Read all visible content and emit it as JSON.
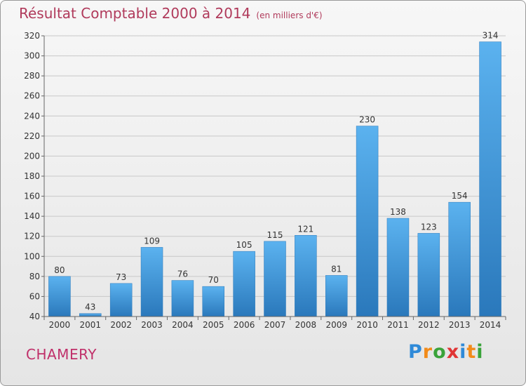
{
  "title": "Résultat Comptable 2000 à 2014",
  "subtitle": "(en milliers d'€)",
  "city": "CHAMERY",
  "logo": {
    "text": "Proxiti",
    "letters": [
      "P",
      "r",
      "o",
      "x",
      "i",
      "t",
      "i"
    ],
    "colors": [
      "#2f8ad8",
      "#f28b1a",
      "#3aa33a",
      "#e03535",
      "#2f8ad8",
      "#f28b1a",
      "#3aa33a"
    ]
  },
  "chart_data": {
    "type": "bar",
    "categories": [
      "2000",
      "2001",
      "2002",
      "2003",
      "2004",
      "2005",
      "2006",
      "2007",
      "2008",
      "2009",
      "2010",
      "2011",
      "2012",
      "2013",
      "2014"
    ],
    "values": [
      80,
      43,
      73,
      109,
      76,
      70,
      105,
      115,
      121,
      81,
      230,
      138,
      123,
      154,
      314
    ],
    "ylim": [
      40,
      320
    ],
    "yticks": [
      40,
      60,
      80,
      100,
      120,
      140,
      160,
      180,
      200,
      220,
      240,
      260,
      280,
      300,
      320
    ],
    "grid": true,
    "bar_color": "#3d8fd6"
  }
}
